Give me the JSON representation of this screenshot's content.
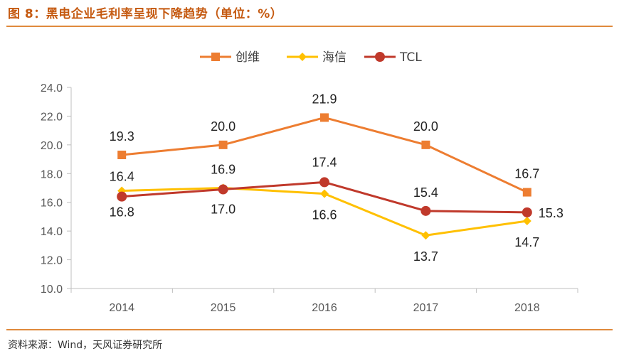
{
  "figure": {
    "title": "图 8：黑电企业毛利率呈现下降趋势（单位：%）",
    "source": "资料来源：Wind，天风证券研究所"
  },
  "colors": {
    "accent": "#e08a3c",
    "title": "#c55a11",
    "axis": "#bfbfbf"
  },
  "chart_data": {
    "type": "line",
    "categories": [
      "2014",
      "2015",
      "2016",
      "2017",
      "2018"
    ],
    "ylim": [
      10.0,
      24.0
    ],
    "yticks": [
      "10.0",
      "12.0",
      "14.0",
      "16.0",
      "18.0",
      "20.0",
      "22.0",
      "24.0"
    ],
    "title": "",
    "xlabel": "",
    "ylabel": "",
    "grid": false,
    "legend": "top-center",
    "series": [
      {
        "name": "创维",
        "values": [
          19.3,
          20.0,
          21.9,
          20.0,
          16.7
        ],
        "labels": [
          "19.3",
          "20.0",
          "21.9",
          "20.0",
          "16.7"
        ],
        "color": "#ed7d31",
        "marker": "square"
      },
      {
        "name": "海信",
        "values": [
          16.8,
          17.0,
          16.6,
          13.7,
          14.7
        ],
        "labels": [
          "16.8",
          "17.0",
          "16.6",
          "13.7",
          "14.7"
        ],
        "color": "#ffc000",
        "marker": "diamond"
      },
      {
        "name": "TCL",
        "values": [
          16.4,
          16.9,
          17.4,
          15.4,
          15.3
        ],
        "labels": [
          "16.4",
          "16.9",
          "17.4",
          "15.4",
          "15.3"
        ],
        "color": "#c0392b",
        "marker": "circle"
      }
    ]
  }
}
